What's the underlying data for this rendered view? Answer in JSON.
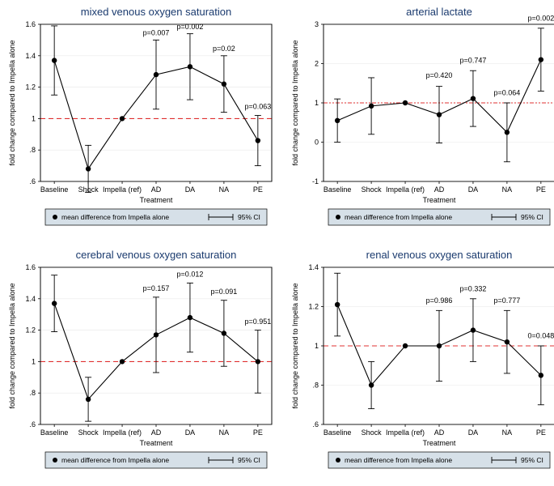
{
  "panels": [
    {
      "id": "mixed-venous",
      "title": "mixed venous oxygen saturation",
      "ylabel": "fold change compared to Impella alone",
      "xlabel": "Treatment",
      "ylim": [
        0.6,
        1.6
      ],
      "yticks": [
        0.6,
        0.8,
        1,
        1.2,
        1.4,
        1.6
      ],
      "ytick_labels": [
        ".6",
        ".8",
        "1",
        "1.2",
        "1.4",
        "1.6"
      ],
      "ref_value": 1.0,
      "ref_color": "#e03030",
      "ref_dash": "6,4",
      "categories": [
        "Baseline",
        "Shock",
        "Impella (ref)",
        "AD",
        "DA",
        "NA",
        "PE"
      ],
      "means": [
        1.37,
        0.68,
        1.0,
        1.28,
        1.33,
        1.22,
        0.86
      ],
      "ci_low": [
        1.15,
        0.53,
        1.0,
        1.06,
        1.12,
        1.04,
        0.7
      ],
      "ci_high": [
        1.59,
        0.83,
        1.0,
        1.5,
        1.54,
        1.4,
        1.02
      ],
      "pvals": [
        null,
        null,
        null,
        "p=0.007",
        "p=0.002",
        "p=0.02",
        "p=0.063"
      ],
      "pval_y": [
        null,
        null,
        null,
        1.52,
        1.56,
        1.42,
        1.05
      ]
    },
    {
      "id": "arterial-lactate",
      "title": "arterial lactate",
      "ylabel": "fold change compared to Impella alone",
      "xlabel": "Treatment",
      "ylim": [
        -1,
        3
      ],
      "yticks": [
        -1,
        0,
        1,
        2,
        3
      ],
      "ytick_labels": [
        "-1",
        "0",
        "1",
        "2",
        "3"
      ],
      "ref_value": 1.0,
      "ref_color": "#e03030",
      "ref_dash": "5,2,2,2,2,2",
      "categories": [
        "Baseline",
        "Shock",
        "Impella (ref)",
        "AD",
        "DA",
        "NA",
        "PE"
      ],
      "means": [
        0.55,
        0.92,
        1.0,
        0.7,
        1.11,
        0.25,
        2.1
      ],
      "ci_low": [
        0.0,
        0.2,
        1.0,
        -0.02,
        0.4,
        -0.5,
        1.3
      ],
      "ci_high": [
        1.1,
        1.64,
        1.0,
        1.42,
        1.82,
        1.0,
        2.9
      ],
      "pvals": [
        null,
        null,
        null,
        "p=0.420",
        "p=0.747",
        "p=0.064",
        "p=0.002"
      ],
      "pval_y": [
        null,
        null,
        null,
        1.6,
        1.98,
        1.15,
        3.05
      ]
    },
    {
      "id": "cerebral-venous",
      "title": "cerebral venous oxygen saturation",
      "ylabel": "fold change compared to Impella alone",
      "xlabel": "Treatment",
      "ylim": [
        0.6,
        1.6
      ],
      "yticks": [
        0.6,
        0.8,
        1,
        1.2,
        1.4,
        1.6
      ],
      "ytick_labels": [
        ".6",
        ".8",
        "1",
        "1.2",
        "1.4",
        "1.6"
      ],
      "ref_value": 1.0,
      "ref_color": "#e03030",
      "ref_dash": "6,4",
      "categories": [
        "Baseline",
        "Shock",
        "Impella (ref)",
        "AD",
        "DA",
        "NA",
        "PE"
      ],
      "means": [
        1.37,
        0.76,
        1.0,
        1.17,
        1.28,
        1.18,
        1.0
      ],
      "ci_low": [
        1.19,
        0.62,
        1.0,
        0.93,
        1.06,
        0.97,
        0.8
      ],
      "ci_high": [
        1.55,
        0.9,
        1.0,
        1.41,
        1.5,
        1.39,
        1.2
      ],
      "pvals": [
        null,
        null,
        null,
        "p=0.157",
        "p=0.012",
        "p=0.091",
        "p=0.951"
      ],
      "pval_y": [
        null,
        null,
        null,
        1.44,
        1.53,
        1.42,
        1.23
      ]
    },
    {
      "id": "renal-venous",
      "title": "renal venous oxygen saturation",
      "ylabel": "fold change compared to Impella alone",
      "xlabel": "Treatment",
      "ylim": [
        0.6,
        1.4
      ],
      "yticks": [
        0.6,
        0.8,
        1,
        1.2,
        1.4
      ],
      "ytick_labels": [
        ".6",
        ".8",
        "1",
        "1.2",
        "1.4"
      ],
      "ref_value": 1.0,
      "ref_color": "#e03030",
      "ref_dash": "6,4",
      "categories": [
        "Baseline",
        "Shock",
        "Impella (ref)",
        "AD",
        "DA",
        "NA",
        "PE"
      ],
      "means": [
        1.21,
        0.8,
        1.0,
        1.0,
        1.08,
        1.02,
        0.85
      ],
      "ci_low": [
        1.05,
        0.68,
        1.0,
        0.82,
        0.92,
        0.86,
        0.7
      ],
      "ci_high": [
        1.37,
        0.92,
        1.0,
        1.18,
        1.24,
        1.18,
        1.0
      ],
      "pvals": [
        null,
        null,
        null,
        "p=0.986",
        "p=0.332",
        "p=0.777",
        "0=0.048"
      ],
      "pval_y": [
        null,
        null,
        null,
        1.21,
        1.27,
        1.21,
        1.03
      ]
    }
  ],
  "legend": {
    "point_label": "mean difference from Impella alone",
    "ci_label": "95% CI"
  },
  "colors": {
    "background": "#ffffff",
    "plot_bg": "#ffffff",
    "title": "#1a3a6e",
    "text": "#000000",
    "line": "#000000",
    "grid": "#e8e8e8",
    "legend_bg": "#d6e0e8"
  }
}
